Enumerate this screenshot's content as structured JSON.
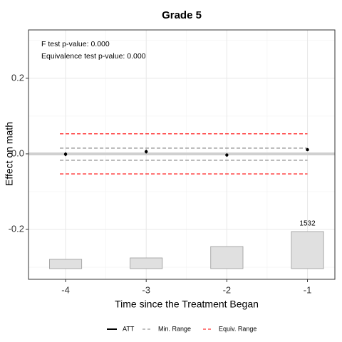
{
  "chart_data": {
    "type": "fect",
    "title": "Grade 5",
    "xlabel": "Time since the Treatment Began",
    "ylabel": "Effect on math",
    "annotations": [
      "F test p-value: 0.000",
      "Equivalence test p-value: 0.000"
    ],
    "x": [
      -4,
      -3,
      -2,
      -1
    ],
    "series": [
      {
        "name": "ATT",
        "color": "#000000",
        "values": [
          -0.001,
          0.006,
          -0.003,
          0.011
        ],
        "errors": [
          0.005,
          0.005,
          0.004,
          0.003
        ]
      },
      {
        "name": "Min. Range",
        "color": "#808080",
        "bounds": [
          -0.017,
          0.015
        ]
      },
      {
        "name": "Equiv. Range",
        "color": "#ff0000",
        "bounds": [
          -0.053,
          0.053
        ]
      }
    ],
    "counts": {
      "values": [
        383,
        442,
        913,
        1532
      ],
      "color": "#e0e0e0"
    },
    "xlim": [
      -4.46,
      -0.66
    ],
    "xticks": [
      -4,
      -3,
      -2,
      -1
    ],
    "ylim": [
      -0.332,
      0.328
    ],
    "yticks": [
      -0.2,
      {
        "value": 0,
        "label": "0.0"
      },
      0.2
    ],
    "grid": true
  }
}
